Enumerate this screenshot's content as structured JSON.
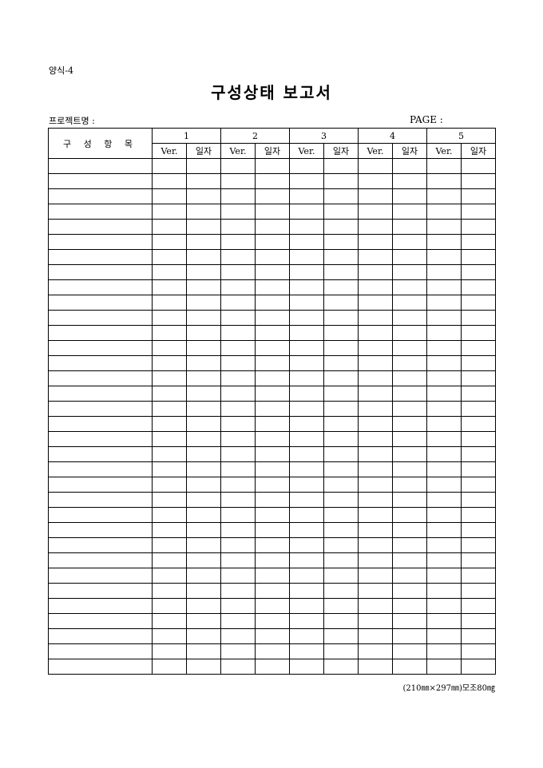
{
  "form_id": "양식-4",
  "title": "구성상태 보고서",
  "project_label": "프로젝트명 :",
  "page_label": "PAGE :",
  "table": {
    "item_header": "구 성 항 목",
    "groups": [
      "1",
      "2",
      "3",
      "4",
      "5"
    ],
    "sub_headers": [
      "Ver.",
      "일자"
    ]
  },
  "footer": "(210㎜×297㎜)모조80㎎"
}
